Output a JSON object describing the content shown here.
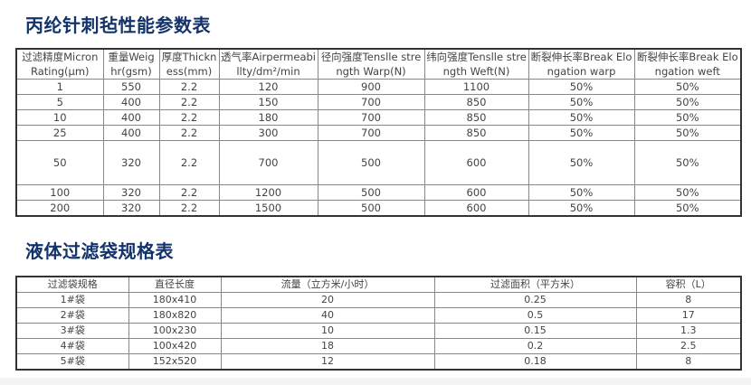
{
  "title1": "丙纶针刺毡性能参数表",
  "table1": {
    "headers": [
      [
        "过滤精度Micron",
        "Rating(μm)"
      ],
      [
        "重量Weig",
        "hr(gsm)"
      ],
      [
        "厚度Thickn",
        "ess(mm)"
      ],
      [
        "透气率Airpermeabi",
        "llty/dm²/min"
      ],
      [
        "径向强度Tenslle stre",
        "ngth Warp(N)"
      ],
      [
        "纬向强度Tenslle stre",
        "ngth Weft(N)"
      ],
      [
        "断裂伸长率Break Elo",
        "ngation warp"
      ],
      [
        "断裂伸长率Break Elo",
        "ngation weft"
      ]
    ],
    "rows": [
      [
        "1",
        "550",
        "2.2",
        "120",
        "900",
        "1100",
        "50%",
        "50%"
      ],
      [
        "5",
        "400",
        "2.2",
        "150",
        "700",
        "850",
        "50%",
        "50%"
      ],
      [
        "10",
        "400",
        "2.2",
        "180",
        "700",
        "850",
        "50%",
        "50%"
      ],
      [
        "25",
        "400",
        "2.2",
        "300",
        "700",
        "850",
        "50%",
        "50%"
      ],
      [
        "50",
        "320",
        "2.2",
        "700",
        "500",
        "600",
        "50%",
        "50%"
      ],
      [
        "100",
        "320",
        "2.2",
        "1200",
        "500",
        "600",
        "50%",
        "50%"
      ],
      [
        "200",
        "320",
        "2.2",
        "1500",
        "500",
        "600",
        "50%",
        "50%"
      ]
    ]
  },
  "title2": "液体过滤袋规格表",
  "table2": {
    "headers": [
      "过滤袋规格",
      "直径长度",
      "流量（立方米/小时）",
      "过滤面积（平方米）",
      "容积（L）"
    ],
    "rows": [
      [
        "1#袋",
        "180x410",
        "20",
        "0.25",
        "8"
      ],
      [
        "2#袋",
        "180x820",
        "40",
        "0.5",
        "17"
      ],
      [
        "3#袋",
        "100x230",
        "10",
        "0.15",
        "1.3"
      ],
      [
        "4#袋",
        "100x420",
        "18",
        "0.2",
        "2.5"
      ],
      [
        "5#袋",
        "152x520",
        "12",
        "0.18",
        "8"
      ]
    ]
  }
}
